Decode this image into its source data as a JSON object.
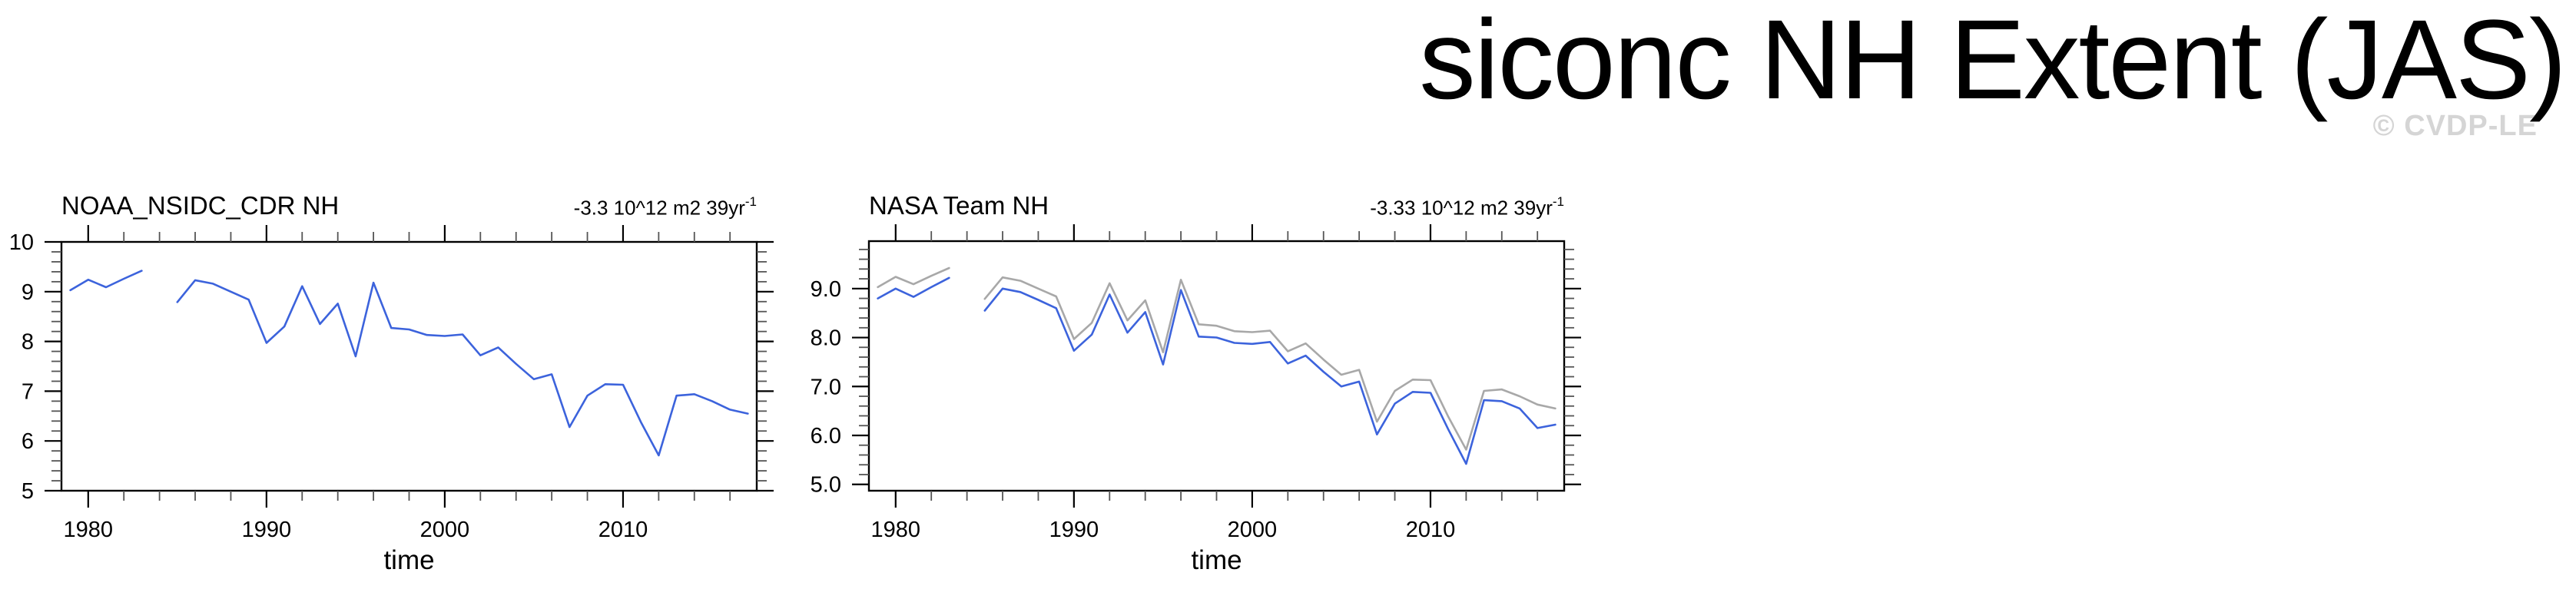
{
  "page": {
    "title": "siconc NH Extent (JAS)",
    "watermark": "© CVDP-LE"
  },
  "chart_data": [
    {
      "type": "line",
      "title": "NOAA_NSIDC_CDR NH",
      "trend_label": "-3.3 10^12 m2 39yr",
      "trend_sup": "-1",
      "xlabel": "time",
      "ylabel": "",
      "x_range": [
        1978.5,
        2017.5
      ],
      "y_range": [
        5,
        10
      ],
      "grid": false,
      "legend": "none",
      "xticks": {
        "major": [
          1980,
          1990,
          2000,
          2010
        ],
        "labels": [
          "1980",
          "1990",
          "2000",
          "2010"
        ],
        "minor_step": 2
      },
      "yticks": {
        "major": [
          10,
          9,
          8,
          7,
          6,
          5
        ],
        "labels": [
          "10",
          "9",
          "8",
          "7",
          "6",
          "5"
        ],
        "minor_step": 0.2
      },
      "x": [
        1979,
        1980,
        1981,
        1982,
        1983,
        1984,
        1985,
        1986,
        1987,
        1988,
        1989,
        1990,
        1991,
        1992,
        1993,
        1994,
        1995,
        1996,
        1997,
        1998,
        1999,
        2000,
        2001,
        2002,
        2003,
        2004,
        2005,
        2006,
        2007,
        2008,
        2009,
        2010,
        2011,
        2012,
        2013,
        2014,
        2015,
        2016,
        2017
      ],
      "series": [
        {
          "name": "NOAA_NSIDC_CDR",
          "color": "#3c63dc",
          "values": [
            9.03,
            9.24,
            9.09,
            9.26,
            9.42,
            null,
            8.79,
            9.23,
            9.16,
            9.0,
            8.84,
            7.97,
            8.3,
            9.11,
            8.35,
            8.76,
            7.7,
            9.18,
            8.27,
            8.24,
            8.13,
            8.11,
            8.14,
            7.72,
            7.88,
            7.55,
            7.24,
            7.34,
            6.28,
            6.91,
            7.14,
            7.13,
            6.38,
            5.71,
            6.91,
            6.94,
            6.8,
            6.63,
            6.55
          ]
        }
      ]
    },
    {
      "type": "line",
      "title": "NASA Team NH",
      "trend_label": "-3.33 10^12 m2 39yr",
      "trend_sup": "-1",
      "xlabel": "time",
      "ylabel": "",
      "x_range": [
        1978.5,
        2017.5
      ],
      "y_range": [
        4.87,
        9.97
      ],
      "grid": false,
      "legend": "none",
      "xticks": {
        "major": [
          1980,
          1990,
          2000,
          2010
        ],
        "labels": [
          "1980",
          "1990",
          "2000",
          "2010"
        ],
        "minor_step": 2
      },
      "yticks": {
        "major": [
          9,
          8,
          7,
          6,
          5
        ],
        "labels": [
          "9.0",
          "8.0",
          "7.0",
          "6.0",
          "5.0"
        ],
        "minor_step": 0.2
      },
      "x": [
        1979,
        1980,
        1981,
        1982,
        1983,
        1984,
        1985,
        1986,
        1987,
        1988,
        1989,
        1990,
        1991,
        1992,
        1993,
        1994,
        1995,
        1996,
        1997,
        1998,
        1999,
        2000,
        2001,
        2002,
        2003,
        2004,
        2005,
        2006,
        2007,
        2008,
        2009,
        2010,
        2011,
        2012,
        2013,
        2014,
        2015,
        2016,
        2017
      ],
      "series": [
        {
          "name": "NOAA_NSIDC_CDR",
          "color": "#a8a8a8",
          "values": [
            9.03,
            9.24,
            9.09,
            9.26,
            9.42,
            null,
            8.79,
            9.23,
            9.16,
            9.0,
            8.84,
            7.97,
            8.3,
            9.11,
            8.35,
            8.76,
            7.7,
            9.18,
            8.27,
            8.24,
            8.13,
            8.11,
            8.14,
            7.72,
            7.88,
            7.55,
            7.24,
            7.34,
            6.28,
            6.91,
            7.14,
            7.13,
            6.38,
            5.71,
            6.91,
            6.94,
            6.8,
            6.63,
            6.55
          ]
        },
        {
          "name": "NASA Team",
          "color": "#3c63dc",
          "values": [
            8.8,
            9.0,
            8.83,
            9.03,
            9.22,
            null,
            8.55,
            9.0,
            8.93,
            8.77,
            8.6,
            7.73,
            8.06,
            8.88,
            8.1,
            8.52,
            7.45,
            8.97,
            8.02,
            8.0,
            7.89,
            7.87,
            7.91,
            7.47,
            7.63,
            7.3,
            7.0,
            7.1,
            6.02,
            6.65,
            6.89,
            6.87,
            6.12,
            5.42,
            6.72,
            6.7,
            6.55,
            6.15,
            6.22
          ]
        }
      ]
    }
  ]
}
